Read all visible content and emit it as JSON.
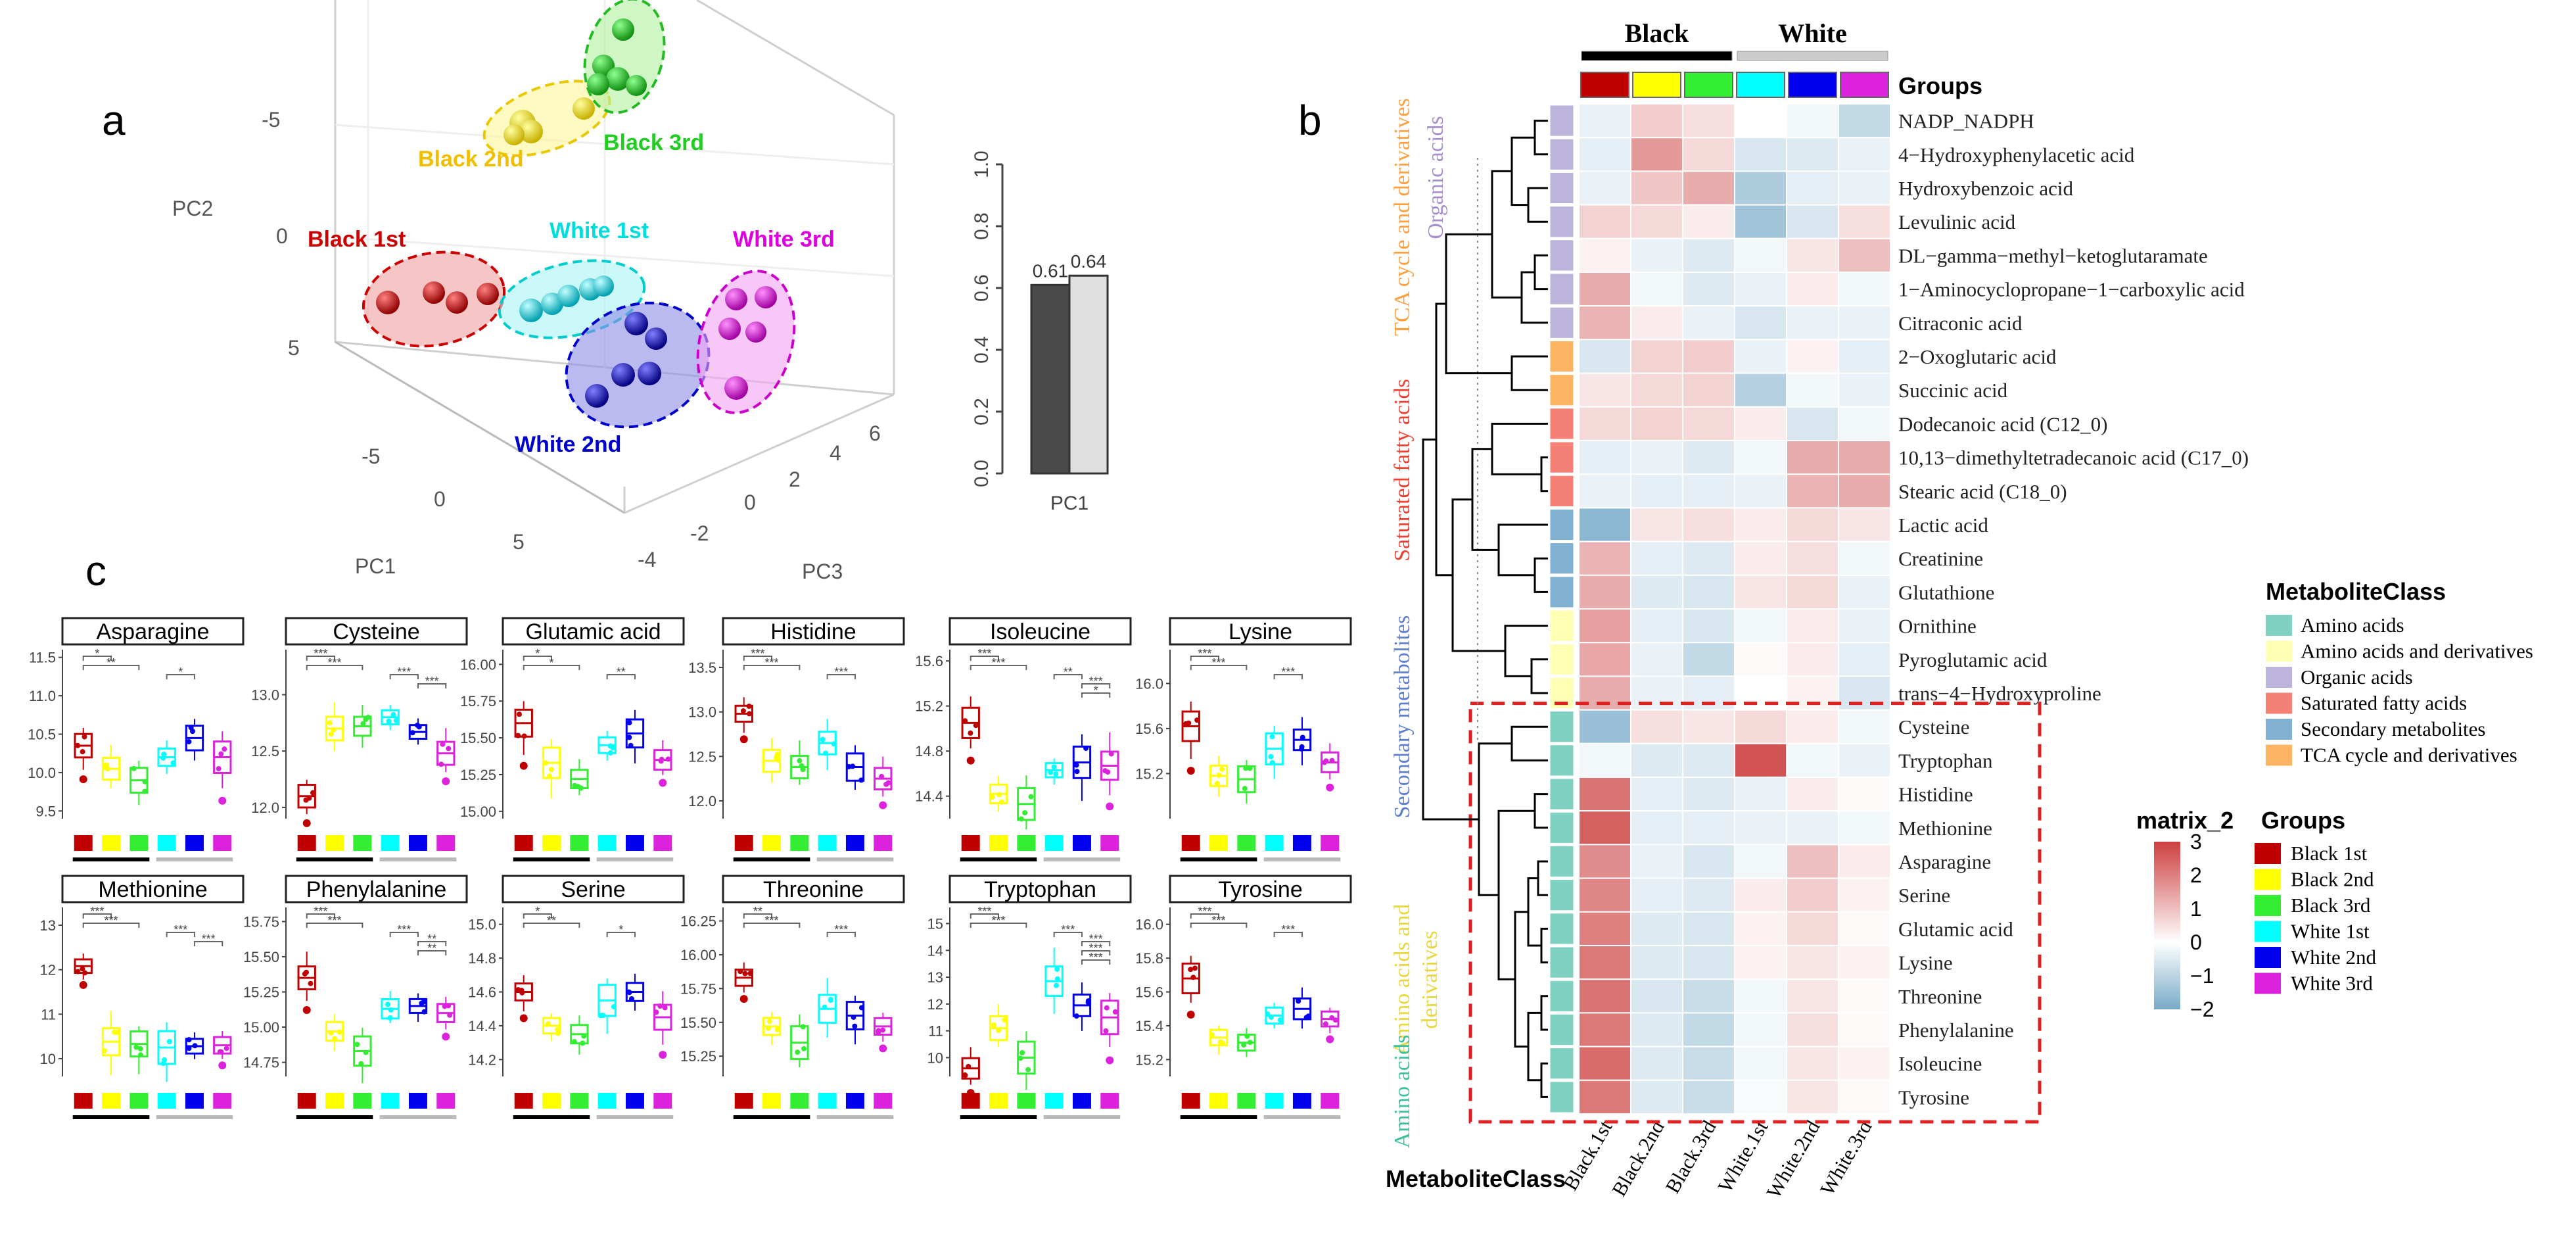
{
  "panel_labels": {
    "a": "a",
    "b": "b",
    "c": "c"
  },
  "groups": [
    {
      "name": "Black 1st",
      "color": "#c00000"
    },
    {
      "name": "Black 2nd",
      "color": "#ffff00"
    },
    {
      "name": "Black 3rd",
      "color": "#33ee33"
    },
    {
      "name": "White 1st",
      "color": "#00ffff"
    },
    {
      "name": "White 2nd",
      "color": "#0000ee"
    },
    {
      "name": "White 3rd",
      "color": "#dd22dd"
    }
  ],
  "pca": {
    "axis_labels": {
      "pc1": "PC1",
      "pc2": "PC2",
      "pc3": "PC3"
    },
    "pc2_ticks": [
      "-5",
      "0",
      "5"
    ],
    "pc1_ticks": [
      "-5",
      "0",
      "5"
    ],
    "pc3_ticks": [
      "6",
      "4",
      "2",
      "0",
      "-2",
      "-4"
    ],
    "group_labels": [
      "Black 1st",
      "Black 2nd",
      "Black 3rd",
      "White 1st",
      "White 2nd",
      "White 3rd"
    ]
  },
  "chart_data": [
    {
      "type": "bar",
      "title": "",
      "categories": [
        "PC1"
      ],
      "series": [
        {
          "name": "Black",
          "values": [
            0.61
          ]
        },
        {
          "name": "White",
          "values": [
            0.64
          ]
        }
      ],
      "data_labels": [
        "0.61",
        "0.64"
      ],
      "ylim": [
        0,
        1.0
      ],
      "yticks": [
        "0.0",
        "0.2",
        "0.4",
        "0.6",
        "0.8",
        "1.0"
      ],
      "xlabel": "PC1",
      "ylabel": ""
    },
    {
      "type": "heatmap",
      "title": "",
      "top_groups": [
        {
          "name": "Black",
          "color": "#000000"
        },
        {
          "name": "White",
          "color": "#cccccc"
        }
      ],
      "groups_label": "Groups",
      "columns": [
        "Black.1st",
        "Black.2nd",
        "Black.3rd",
        "White.1st",
        "White.2nd",
        "White.3rd"
      ],
      "rows": [
        {
          "name": "NADP_NADPH",
          "class": "Organic acids",
          "values": [
            -0.3,
            0.8,
            0.5,
            0.0,
            -0.2,
            -0.9
          ]
        },
        {
          "name": "4−Hydroxyphenylacetic acid",
          "class": "Organic acids",
          "values": [
            -0.4,
            1.6,
            0.6,
            -0.6,
            -0.5,
            -0.3
          ]
        },
        {
          "name": "Hydroxybenzoic acid",
          "class": "Organic acids",
          "values": [
            -0.3,
            0.9,
            1.3,
            -1.2,
            -0.4,
            -0.3
          ]
        },
        {
          "name": "Levulinic acid",
          "class": "Organic acids",
          "values": [
            0.7,
            0.6,
            0.3,
            -1.4,
            -0.6,
            0.5
          ]
        },
        {
          "name": "DL−gamma−methyl−ketoglutaramate",
          "class": "Organic acids",
          "values": [
            0.2,
            -0.3,
            -0.5,
            -0.2,
            0.4,
            1.0
          ]
        },
        {
          "name": "1−Aminocyclopropane−1−carboxylic acid",
          "class": "Organic acids",
          "values": [
            1.3,
            -0.2,
            -0.5,
            -0.3,
            0.3,
            -0.2
          ]
        },
        {
          "name": "Citraconic acid",
          "class": "Organic acids",
          "values": [
            1.2,
            0.3,
            -0.3,
            -0.6,
            -0.3,
            -0.3
          ]
        },
        {
          "name": "2−Oxoglutaric acid",
          "class": "TCA cycle and derivatives",
          "values": [
            -0.6,
            0.7,
            0.8,
            -0.3,
            0.2,
            -0.4
          ]
        },
        {
          "name": "Succinic acid",
          "class": "TCA cycle and derivatives",
          "values": [
            0.4,
            0.6,
            0.7,
            -1.1,
            -0.2,
            -0.3
          ]
        },
        {
          "name": "Dodecanoic acid (C12_0)",
          "class": "Saturated fatty acids",
          "values": [
            0.6,
            0.7,
            0.6,
            0.3,
            -0.6,
            -0.2
          ]
        },
        {
          "name": "10,13−dimethyltetradecanoic acid  (C17_0)",
          "class": "Saturated fatty acids",
          "values": [
            -0.4,
            -0.3,
            -0.5,
            -0.2,
            1.3,
            1.3
          ]
        },
        {
          "name": "Stearic acid (C18_0)",
          "class": "Saturated fatty acids",
          "values": [
            -0.3,
            -0.4,
            -0.4,
            -0.3,
            1.2,
            1.3
          ]
        },
        {
          "name": "Lactic acid",
          "class": "Secondary metabolites",
          "values": [
            -1.7,
            0.4,
            0.5,
            0.3,
            0.6,
            0.4
          ]
        },
        {
          "name": "Creatinine",
          "class": "Secondary metabolites",
          "values": [
            1.2,
            -0.4,
            -0.5,
            0.3,
            0.5,
            -0.2
          ]
        },
        {
          "name": "Glutathione",
          "class": "Secondary metabolites",
          "values": [
            1.3,
            -0.5,
            -0.6,
            0.4,
            0.6,
            -0.3
          ]
        },
        {
          "name": "Ornithine",
          "class": "Amino acids and derivatives",
          "values": [
            1.5,
            -0.4,
            -0.6,
            -0.2,
            0.3,
            -0.3
          ]
        },
        {
          "name": "Pyroglutamic acid",
          "class": "Amino acids and derivatives",
          "values": [
            1.4,
            -0.3,
            -0.9,
            0.1,
            0.3,
            -0.4
          ]
        },
        {
          "name": "trans−4−Hydroxyproline",
          "class": "Amino acids and derivatives",
          "values": [
            1.3,
            -0.3,
            -0.4,
            0.0,
            0.2,
            -0.6
          ]
        },
        {
          "name": "Cysteine",
          "class": "Amino acids",
          "values": [
            -1.5,
            0.5,
            0.4,
            0.6,
            0.3,
            -0.2
          ]
        },
        {
          "name": "Tryptophan",
          "class": "Amino acids",
          "values": [
            -0.2,
            -0.5,
            -0.5,
            2.7,
            -0.2,
            -0.3
          ]
        },
        {
          "name": "Histidine",
          "class": "Amino acids",
          "values": [
            2.2,
            -0.4,
            -0.5,
            -0.3,
            0.3,
            0.1
          ]
        },
        {
          "name": "Methionine",
          "class": "Amino acids",
          "values": [
            2.5,
            -0.4,
            -0.4,
            -0.3,
            -0.3,
            -0.2
          ]
        },
        {
          "name": "Asparagine",
          "class": "Amino acids",
          "values": [
            1.8,
            -0.3,
            -0.6,
            -0.2,
            1.0,
            0.3
          ]
        },
        {
          "name": "Serine",
          "class": "Amino acids",
          "values": [
            1.9,
            -0.4,
            -0.5,
            0.3,
            0.8,
            0.2
          ]
        },
        {
          "name": "Glutamic acid",
          "class": "Amino acids",
          "values": [
            2.0,
            -0.5,
            -0.6,
            0.2,
            0.6,
            0.1
          ]
        },
        {
          "name": "Lysine",
          "class": "Amino acids",
          "values": [
            2.1,
            -0.5,
            -0.6,
            0.2,
            0.4,
            0.2
          ]
        },
        {
          "name": "Threonine",
          "class": "Amino acids",
          "values": [
            2.2,
            -0.6,
            -0.8,
            -0.2,
            0.4,
            0.1
          ]
        },
        {
          "name": "Phenylalanine",
          "class": "Amino acids",
          "values": [
            2.1,
            -0.5,
            -0.9,
            -0.2,
            0.5,
            0.1
          ]
        },
        {
          "name": "Isoleucine",
          "class": "Amino acids",
          "values": [
            2.3,
            -0.5,
            -0.8,
            -0.2,
            0.4,
            0.2
          ]
        },
        {
          "name": "Tyrosine",
          "class": "Amino acids",
          "values": [
            2.1,
            -0.5,
            -0.8,
            -0.1,
            0.4,
            0.1
          ]
        }
      ],
      "class_colors": {
        "Amino acids": "#7fd1c1",
        "Amino acids and derivatives": "#ffffb3",
        "Organic acids": "#bdb4dc",
        "Saturated fatty acids": "#f58075",
        "Secondary metabolites": "#80b1d3",
        "TCA cycle and derivatives": "#fdb462"
      },
      "side_class_labels": [
        {
          "text": "TCA cycle and derivatives",
          "color": "#fda040"
        },
        {
          "text": "Organic acids",
          "color": "#a98fcc"
        },
        {
          "text": "Saturated fatty acids",
          "color": "#ee4030"
        },
        {
          "text": "Secondary metabolites",
          "color": "#5f7fcc"
        },
        {
          "text": "Amino acids and",
          "color": "#e8d840"
        },
        {
          "text": "derivatives",
          "color": "#e8d840"
        },
        {
          "text": "Amino acids",
          "color": "#40c0a0"
        }
      ],
      "metabolite_class_label": "MetaboliteClass",
      "legend_title": "MetaboliteClass",
      "legend_items": [
        "Amino acids",
        "Amino acids and derivatives",
        "Organic acids",
        "Saturated fatty acids",
        "Secondary metabolites",
        "TCA cycle and derivatives"
      ],
      "scale_title": "matrix_2",
      "scale_ticks": [
        "3",
        "2",
        "1",
        "0",
        "−1",
        "−2"
      ],
      "scale_range": [
        -2,
        3
      ],
      "groups_legend_title": "Groups",
      "groups_legend_items": [
        "Black 1st",
        "Black 2nd",
        "Black 3rd",
        "White 1st",
        "White 2nd",
        "White 3rd"
      ]
    },
    {
      "type": "boxplot",
      "categories": [
        "Black 1st",
        "Black 2nd",
        "Black 3rd",
        "White 1st",
        "White 2nd",
        "White 3rd"
      ],
      "panels": [
        {
          "title": "Asparagine",
          "yticks": [
            "11.5",
            "11.0",
            "10.5",
            "10.0",
            "9.5"
          ],
          "ylim": [
            9.4,
            11.6
          ],
          "medians": [
            10.35,
            10.05,
            9.9,
            10.2,
            10.45,
            10.2
          ],
          "sig": [
            "*",
            "**",
            "*"
          ]
        },
        {
          "title": "Cysteine",
          "yticks": [
            "13.0",
            "12.5",
            "12.0"
          ],
          "ylim": [
            11.9,
            13.4
          ],
          "medians": [
            12.1,
            12.7,
            12.72,
            12.8,
            12.67,
            12.48
          ],
          "sig": [
            "***",
            "***",
            "***",
            "***"
          ]
        },
        {
          "title": "Glutamic acid",
          "yticks": [
            "16.00",
            "15.75",
            "15.50",
            "15.25",
            "15.00"
          ],
          "ylim": [
            14.95,
            16.1
          ],
          "medians": [
            15.6,
            15.33,
            15.22,
            15.45,
            15.53,
            15.35
          ],
          "sig": [
            "*",
            "*",
            "**"
          ]
        },
        {
          "title": "Histidine",
          "yticks": [
            "13.5",
            "13.0",
            "12.5",
            "12.0"
          ],
          "ylim": [
            11.8,
            13.7
          ],
          "medians": [
            12.98,
            12.45,
            12.38,
            12.65,
            12.38,
            12.25
          ],
          "sig": [
            "***",
            "***",
            "***"
          ]
        },
        {
          "title": "Isoleucine",
          "yticks": [
            "15.6",
            "15.2",
            "14.8",
            "14.4"
          ],
          "ylim": [
            14.2,
            15.7
          ],
          "medians": [
            15.05,
            14.42,
            14.33,
            14.63,
            14.7,
            14.67
          ],
          "sig": [
            "***",
            "***",
            "**",
            "***",
            "*"
          ]
        },
        {
          "title": "Lysine",
          "yticks": [
            "16.0",
            "15.6",
            "15.2"
          ],
          "ylim": [
            14.8,
            16.3
          ],
          "medians": [
            15.62,
            15.18,
            15.15,
            15.42,
            15.5,
            15.3
          ],
          "sig": [
            "***",
            "***",
            "***"
          ]
        },
        {
          "title": "Methionine",
          "yticks": [
            "13",
            "12",
            "11",
            "10"
          ],
          "ylim": [
            9.6,
            13.4
          ],
          "medians": [
            12.08,
            10.38,
            10.33,
            10.25,
            10.28,
            10.3
          ],
          "sig": [
            "***",
            "***",
            "***",
            "***"
          ]
        },
        {
          "title": "Phenylalanine",
          "yticks": [
            "15.75",
            "15.50",
            "15.25",
            "15.00",
            "14.75"
          ],
          "ylim": [
            14.65,
            15.85
          ],
          "medians": [
            15.35,
            14.97,
            14.83,
            15.13,
            15.15,
            15.1
          ],
          "sig": [
            "***",
            "***",
            "***",
            "**",
            "**"
          ]
        },
        {
          "title": "Serine",
          "yticks": [
            "15.0",
            "14.8",
            "14.6",
            "14.4",
            "14.2"
          ],
          "ylim": [
            14.1,
            15.1
          ],
          "medians": [
            14.6,
            14.4,
            14.35,
            14.55,
            14.6,
            14.45
          ],
          "sig": [
            "*",
            "**",
            "*"
          ]
        },
        {
          "title": "Threonine",
          "yticks": [
            "16.25",
            "16.00",
            "15.75",
            "15.50",
            "15.25"
          ],
          "ylim": [
            15.1,
            16.35
          ],
          "medians": [
            15.83,
            15.47,
            15.35,
            15.6,
            15.55,
            15.47
          ],
          "sig": [
            "**",
            "***",
            "***"
          ]
        },
        {
          "title": "Tryptophan",
          "yticks": [
            "15",
            "14",
            "13",
            "12",
            "11",
            "10"
          ],
          "ylim": [
            9.3,
            15.6
          ],
          "medians": [
            9.6,
            11.1,
            10.0,
            12.85,
            11.95,
            11.5
          ],
          "sig": [
            "***",
            "***",
            "***",
            "***",
            "***",
            "***"
          ]
        },
        {
          "title": "Tyrosine",
          "yticks": [
            "16.0",
            "15.8",
            "15.6",
            "15.4",
            "15.2"
          ],
          "ylim": [
            15.1,
            16.1
          ],
          "medians": [
            15.68,
            15.33,
            15.3,
            15.46,
            15.5,
            15.44
          ],
          "sig": [
            "***",
            "***",
            "***"
          ]
        }
      ]
    }
  ]
}
